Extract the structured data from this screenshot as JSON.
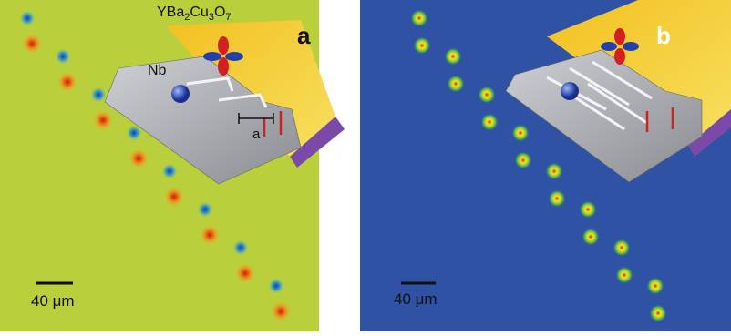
{
  "panel_a": {
    "label": "a",
    "formula": [
      "YBa",
      "2",
      "Cu",
      "3",
      "O",
      "7"
    ],
    "metal": "Nb",
    "spacing": "a",
    "scale_bar": "40 μm"
  },
  "panel_b": {
    "label": "b",
    "scale_bar": "40 μm"
  }
}
